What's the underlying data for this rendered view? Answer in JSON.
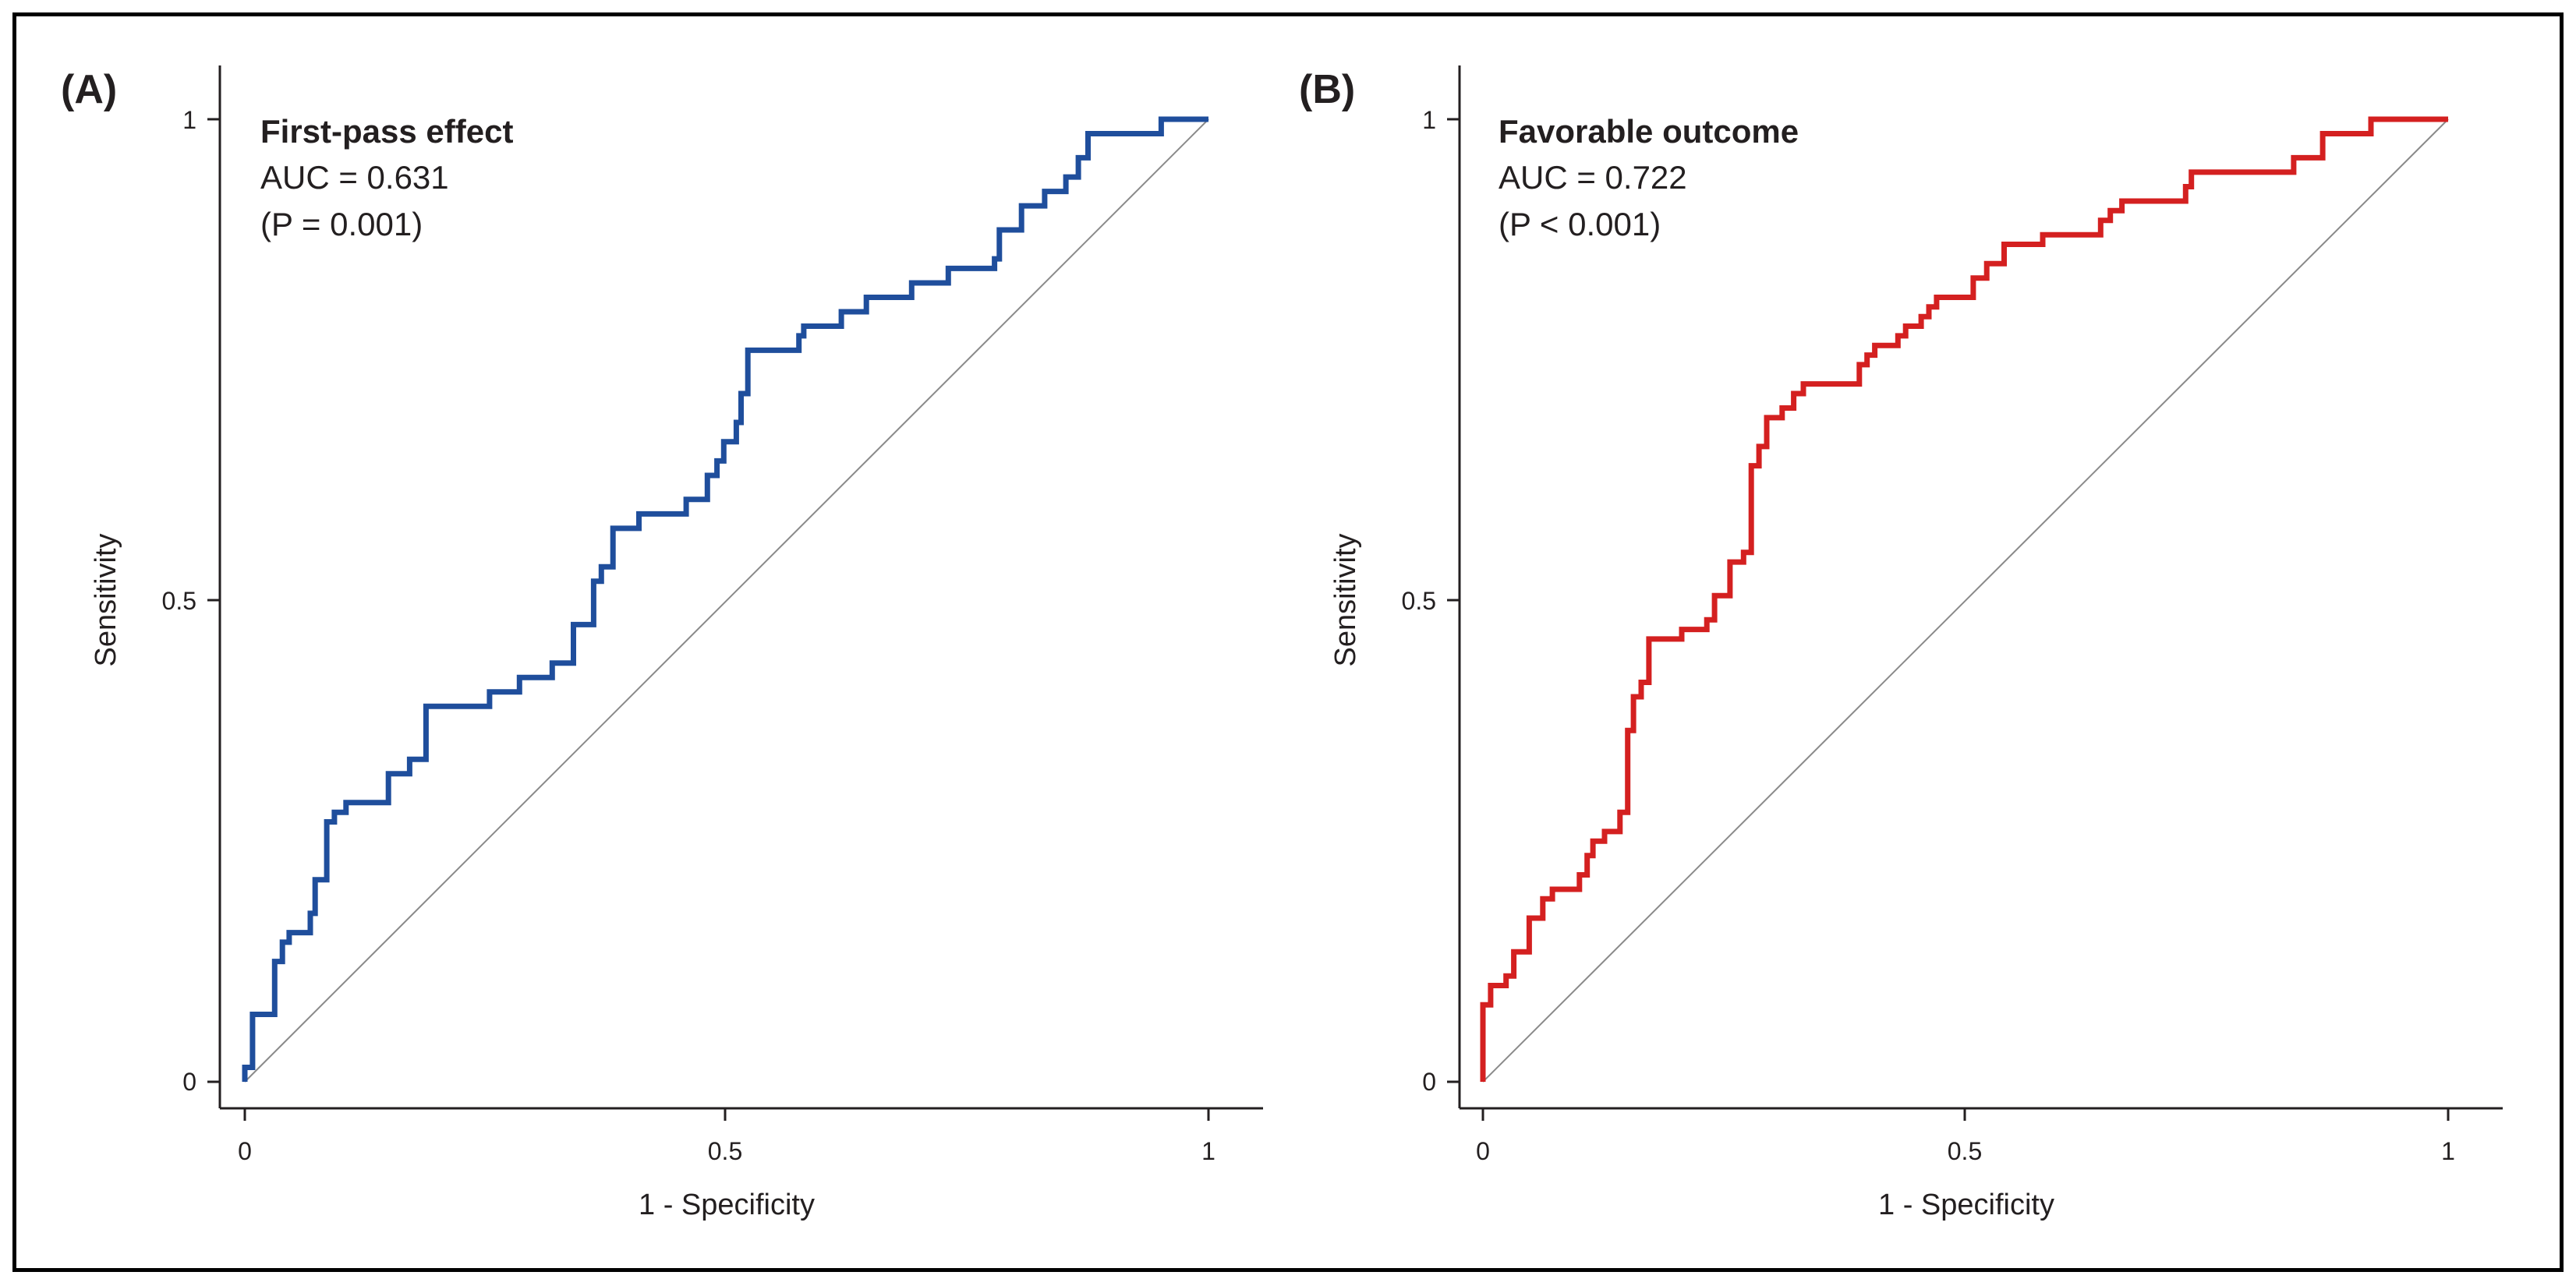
{
  "charts": [
    {
      "panel_label": "(A)",
      "title": "First-pass effect",
      "auc_text": "AUC = 0.631",
      "p_text": "(P = 0.001)",
      "xlabel": "1 - Specificity",
      "ylabel": "Sensitivity",
      "x_ticks": [
        "0",
        "0.5",
        "1"
      ],
      "y_ticks": [
        "0",
        "0.5",
        "1"
      ],
      "curve_color": "#1f4e9c"
    },
    {
      "panel_label": "(B)",
      "title": "Favorable outcome",
      "auc_text": "AUC = 0.722",
      "p_text": "(P < 0.001)",
      "xlabel": "1 - Specificity",
      "ylabel": "Sensitivity",
      "x_ticks": [
        "0",
        "0.5",
        "1"
      ],
      "y_ticks": [
        "0",
        "0.5",
        "1"
      ],
      "curve_color": "#d42020"
    }
  ],
  "chart_data": [
    {
      "type": "line",
      "title": "First-pass effect",
      "xlabel": "1 - Specificity",
      "ylabel": "Sensitivity",
      "xlim": [
        0,
        1
      ],
      "ylim": [
        0,
        1
      ],
      "grid": false,
      "series": [
        {
          "kind": "roc-step",
          "color": "#1f4e9c",
          "points": [
            [
              0,
              0
            ],
            [
              0,
              0.015
            ],
            [
              0.008,
              0.015
            ],
            [
              0.008,
              0.07
            ],
            [
              0.031,
              0.07
            ],
            [
              0.031,
              0.125
            ],
            [
              0.039,
              0.125
            ],
            [
              0.039,
              0.145
            ],
            [
              0.046,
              0.145
            ],
            [
              0.046,
              0.155
            ],
            [
              0.068,
              0.155
            ],
            [
              0.068,
              0.175
            ],
            [
              0.073,
              0.175
            ],
            [
              0.073,
              0.21
            ],
            [
              0.085,
              0.21
            ],
            [
              0.085,
              0.27
            ],
            [
              0.093,
              0.27
            ],
            [
              0.093,
              0.28
            ],
            [
              0.105,
              0.28
            ],
            [
              0.105,
              0.29
            ],
            [
              0.149,
              0.29
            ],
            [
              0.149,
              0.32
            ],
            [
              0.171,
              0.32
            ],
            [
              0.171,
              0.335
            ],
            [
              0.188,
              0.335
            ],
            [
              0.188,
              0.39
            ],
            [
              0.254,
              0.39
            ],
            [
              0.254,
              0.405
            ],
            [
              0.285,
              0.405
            ],
            [
              0.285,
              0.42
            ],
            [
              0.319,
              0.42
            ],
            [
              0.319,
              0.435
            ],
            [
              0.341,
              0.435
            ],
            [
              0.341,
              0.475
            ],
            [
              0.362,
              0.475
            ],
            [
              0.362,
              0.52
            ],
            [
              0.37,
              0.52
            ],
            [
              0.37,
              0.535
            ],
            [
              0.382,
              0.535
            ],
            [
              0.382,
              0.575
            ],
            [
              0.409,
              0.575
            ],
            [
              0.409,
              0.59
            ],
            [
              0.458,
              0.59
            ],
            [
              0.458,
              0.605
            ],
            [
              0.48,
              0.605
            ],
            [
              0.48,
              0.63
            ],
            [
              0.49,
              0.63
            ],
            [
              0.49,
              0.645
            ],
            [
              0.497,
              0.645
            ],
            [
              0.497,
              0.665
            ],
            [
              0.51,
              0.665
            ],
            [
              0.51,
              0.685
            ],
            [
              0.515,
              0.685
            ],
            [
              0.515,
              0.715
            ],
            [
              0.522,
              0.715
            ],
            [
              0.522,
              0.76
            ],
            [
              0.575,
              0.76
            ],
            [
              0.575,
              0.775
            ],
            [
              0.58,
              0.775
            ],
            [
              0.58,
              0.785
            ],
            [
              0.619,
              0.785
            ],
            [
              0.619,
              0.8
            ],
            [
              0.645,
              0.8
            ],
            [
              0.645,
              0.815
            ],
            [
              0.692,
              0.815
            ],
            [
              0.692,
              0.83
            ],
            [
              0.73,
              0.83
            ],
            [
              0.73,
              0.845
            ],
            [
              0.778,
              0.845
            ],
            [
              0.778,
              0.855
            ],
            [
              0.783,
              0.855
            ],
            [
              0.783,
              0.885
            ],
            [
              0.806,
              0.885
            ],
            [
              0.806,
              0.91
            ],
            [
              0.83,
              0.91
            ],
            [
              0.83,
              0.925
            ],
            [
              0.852,
              0.925
            ],
            [
              0.852,
              0.94
            ],
            [
              0.865,
              0.94
            ],
            [
              0.865,
              0.96
            ],
            [
              0.875,
              0.96
            ],
            [
              0.875,
              0.985
            ],
            [
              0.951,
              0.985
            ],
            [
              0.951,
              1
            ],
            [
              1,
              1
            ]
          ]
        },
        {
          "kind": "reference",
          "color": "#8a8a8a",
          "points": [
            [
              0,
              0
            ],
            [
              1,
              1
            ]
          ]
        }
      ]
    },
    {
      "type": "line",
      "title": "Favorable outcome",
      "xlabel": "1 - Specificity",
      "ylabel": "Sensitivity",
      "xlim": [
        0,
        1
      ],
      "ylim": [
        0,
        1
      ],
      "grid": false,
      "series": [
        {
          "kind": "roc-step",
          "color": "#d42020",
          "points": [
            [
              0,
              0
            ],
            [
              0,
              0.08
            ],
            [
              0.008,
              0.08
            ],
            [
              0.008,
              0.1
            ],
            [
              0.024,
              0.1
            ],
            [
              0.024,
              0.11
            ],
            [
              0.032,
              0.11
            ],
            [
              0.032,
              0.135
            ],
            [
              0.048,
              0.135
            ],
            [
              0.048,
              0.17
            ],
            [
              0.062,
              0.17
            ],
            [
              0.062,
              0.19
            ],
            [
              0.072,
              0.19
            ],
            [
              0.072,
              0.2
            ],
            [
              0.1,
              0.2
            ],
            [
              0.1,
              0.215
            ],
            [
              0.108,
              0.215
            ],
            [
              0.108,
              0.235
            ],
            [
              0.114,
              0.235
            ],
            [
              0.114,
              0.25
            ],
            [
              0.126,
              0.25
            ],
            [
              0.126,
              0.26
            ],
            [
              0.142,
              0.26
            ],
            [
              0.142,
              0.28
            ],
            [
              0.15,
              0.28
            ],
            [
              0.15,
              0.365
            ],
            [
              0.156,
              0.365
            ],
            [
              0.156,
              0.4
            ],
            [
              0.164,
              0.4
            ],
            [
              0.164,
              0.415
            ],
            [
              0.172,
              0.415
            ],
            [
              0.172,
              0.46
            ],
            [
              0.206,
              0.46
            ],
            [
              0.206,
              0.47
            ],
            [
              0.232,
              0.47
            ],
            [
              0.232,
              0.48
            ],
            [
              0.24,
              0.48
            ],
            [
              0.24,
              0.505
            ],
            [
              0.256,
              0.505
            ],
            [
              0.256,
              0.54
            ],
            [
              0.27,
              0.54
            ],
            [
              0.27,
              0.55
            ],
            [
              0.278,
              0.55
            ],
            [
              0.278,
              0.64
            ],
            [
              0.286,
              0.64
            ],
            [
              0.286,
              0.66
            ],
            [
              0.294,
              0.66
            ],
            [
              0.294,
              0.69
            ],
            [
              0.31,
              0.69
            ],
            [
              0.31,
              0.7
            ],
            [
              0.322,
              0.7
            ],
            [
              0.322,
              0.715
            ],
            [
              0.332,
              0.715
            ],
            [
              0.332,
              0.725
            ],
            [
              0.39,
              0.725
            ],
            [
              0.39,
              0.745
            ],
            [
              0.398,
              0.745
            ],
            [
              0.398,
              0.755
            ],
            [
              0.406,
              0.755
            ],
            [
              0.406,
              0.765
            ],
            [
              0.43,
              0.765
            ],
            [
              0.43,
              0.775
            ],
            [
              0.438,
              0.775
            ],
            [
              0.438,
              0.785
            ],
            [
              0.454,
              0.785
            ],
            [
              0.454,
              0.795
            ],
            [
              0.462,
              0.795
            ],
            [
              0.462,
              0.805
            ],
            [
              0.47,
              0.805
            ],
            [
              0.47,
              0.815
            ],
            [
              0.508,
              0.815
            ],
            [
              0.508,
              0.835
            ],
            [
              0.522,
              0.835
            ],
            [
              0.522,
              0.85
            ],
            [
              0.54,
              0.85
            ],
            [
              0.54,
              0.87
            ],
            [
              0.58,
              0.87
            ],
            [
              0.58,
              0.88
            ],
            [
              0.64,
              0.88
            ],
            [
              0.64,
              0.895
            ],
            [
              0.65,
              0.895
            ],
            [
              0.65,
              0.905
            ],
            [
              0.662,
              0.905
            ],
            [
              0.662,
              0.915
            ],
            [
              0.728,
              0.915
            ],
            [
              0.728,
              0.93
            ],
            [
              0.734,
              0.93
            ],
            [
              0.734,
              0.945
            ],
            [
              0.84,
              0.945
            ],
            [
              0.84,
              0.96
            ],
            [
              0.87,
              0.96
            ],
            [
              0.87,
              0.985
            ],
            [
              0.92,
              0.985
            ],
            [
              0.92,
              1
            ],
            [
              1,
              1
            ]
          ]
        },
        {
          "kind": "reference",
          "color": "#8a8a8a",
          "points": [
            [
              0,
              0
            ],
            [
              1,
              1
            ]
          ]
        }
      ]
    }
  ]
}
